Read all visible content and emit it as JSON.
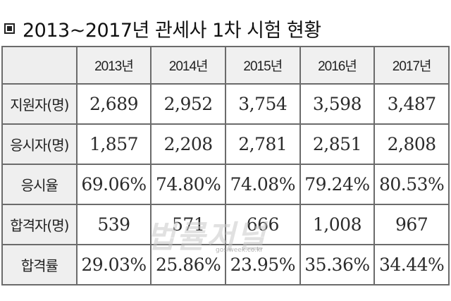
{
  "title": "2013~2017년 관세사 1차 시험 현황",
  "table": {
    "columns": [
      "2013년",
      "2014년",
      "2015년",
      "2016년",
      "2017년"
    ],
    "rows": [
      {
        "label": "지원자(명)",
        "values": [
          "2,689",
          "2,952",
          "3,754",
          "3,598",
          "3,487"
        ]
      },
      {
        "label": "응시자(명)",
        "values": [
          "1,857",
          "2,208",
          "2,781",
          "2,851",
          "2,808"
        ]
      },
      {
        "label": "응시율",
        "values": [
          "69.06%",
          "74.80%",
          "74.08%",
          "79.24%",
          "80.53%"
        ]
      },
      {
        "label": "합격자(명)",
        "values": [
          "539",
          "571",
          "666",
          "1,008",
          "967"
        ]
      },
      {
        "label": "합격률",
        "values": [
          "29.03%",
          "25.86%",
          "23.95%",
          "35.36%",
          "34.44%"
        ]
      }
    ]
  },
  "watermark": {
    "text": "법률저널",
    "url": "gosiweek.co.kr"
  }
}
